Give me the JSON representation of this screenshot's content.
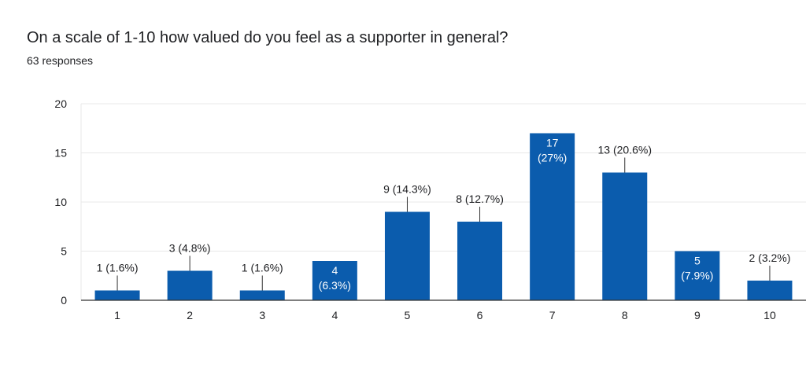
{
  "header": {
    "title": "On a scale of 1-10 how valued do you feel as a supporter in general?",
    "responses": "63 responses"
  },
  "colors": {
    "bar": "#0b5cad",
    "grid": "#e8e8e8",
    "axis": "#333333",
    "label_dark": "#202124",
    "label_light": "#ffffff"
  },
  "chart_data": {
    "type": "bar",
    "categories": [
      "1",
      "2",
      "3",
      "4",
      "5",
      "6",
      "7",
      "8",
      "9",
      "10"
    ],
    "values": [
      1,
      3,
      1,
      4,
      9,
      8,
      17,
      13,
      5,
      2
    ],
    "data_labels": [
      [
        "1 (1.6%)"
      ],
      [
        "3 (4.8%)"
      ],
      [
        "1 (1.6%)"
      ],
      [
        "4",
        "(6.3%)"
      ],
      [
        "9 (14.3%)"
      ],
      [
        "8 (12.7%)"
      ],
      [
        "17",
        "(27%)"
      ],
      [
        "13 (20.6%)"
      ],
      [
        "5",
        "(7.9%)"
      ],
      [
        "2 (3.2%)"
      ]
    ],
    "label_inside": [
      false,
      false,
      false,
      true,
      false,
      false,
      true,
      false,
      true,
      false
    ],
    "y_ticks": [
      0,
      5,
      10,
      15,
      20
    ],
    "ylim": [
      0,
      20
    ],
    "grid": true,
    "legend": "none"
  }
}
